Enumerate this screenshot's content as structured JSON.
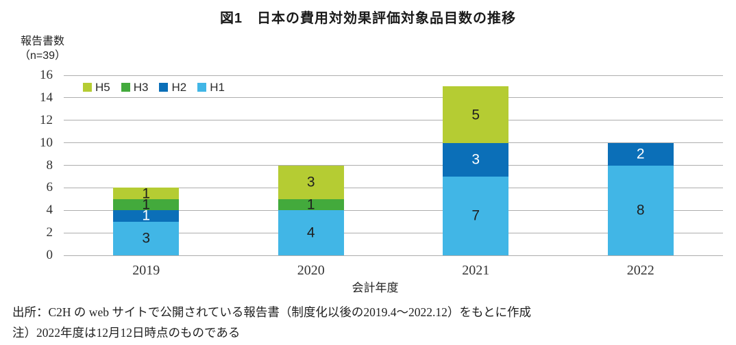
{
  "figure": {
    "title": "図1　日本の費用対効果評価対象品目数の推移",
    "y_axis_title_line1": "報告書数",
    "y_axis_title_line2": "（n=39）",
    "x_axis_title": "会計年度",
    "source_note": "出所：C2H の web サイトで公開されている報告書（制度化以後の2019.4～2022.12）をもとに作成",
    "footnote": "注）2022年度は12月12日時点のものである"
  },
  "chart_data": {
    "type": "bar",
    "stacked": true,
    "title": "図1　日本の費用対効果評価対象品目数の推移",
    "xlabel": "会計年度",
    "ylabel": "報告書数（n=39）",
    "categories": [
      "2019",
      "2020",
      "2021",
      "2022"
    ],
    "series": [
      {
        "name": "H1",
        "color": "#41b6e6",
        "label_color": "#1f1f1f",
        "values": [
          3,
          4,
          7,
          8
        ]
      },
      {
        "name": "H2",
        "color": "#0b6fb8",
        "label_color": "#ffffff",
        "values": [
          1,
          0,
          3,
          2
        ]
      },
      {
        "name": "H3",
        "color": "#43aa3c",
        "label_color": "#1f1f1f",
        "values": [
          1,
          1,
          0,
          0
        ]
      },
      {
        "name": "H5",
        "color": "#b5cc33",
        "label_color": "#1f1f1f",
        "values": [
          1,
          3,
          5,
          0
        ]
      }
    ],
    "stack_order_bottom_to_top": [
      "H1",
      "H2",
      "H3",
      "H5"
    ],
    "totals": [
      6,
      8,
      15,
      10
    ],
    "legend": [
      "H5",
      "H3",
      "H2",
      "H1"
    ],
    "legend_position": "inside-top-left",
    "ylim": [
      0,
      16
    ],
    "ytick_step": 2,
    "grid": true
  }
}
